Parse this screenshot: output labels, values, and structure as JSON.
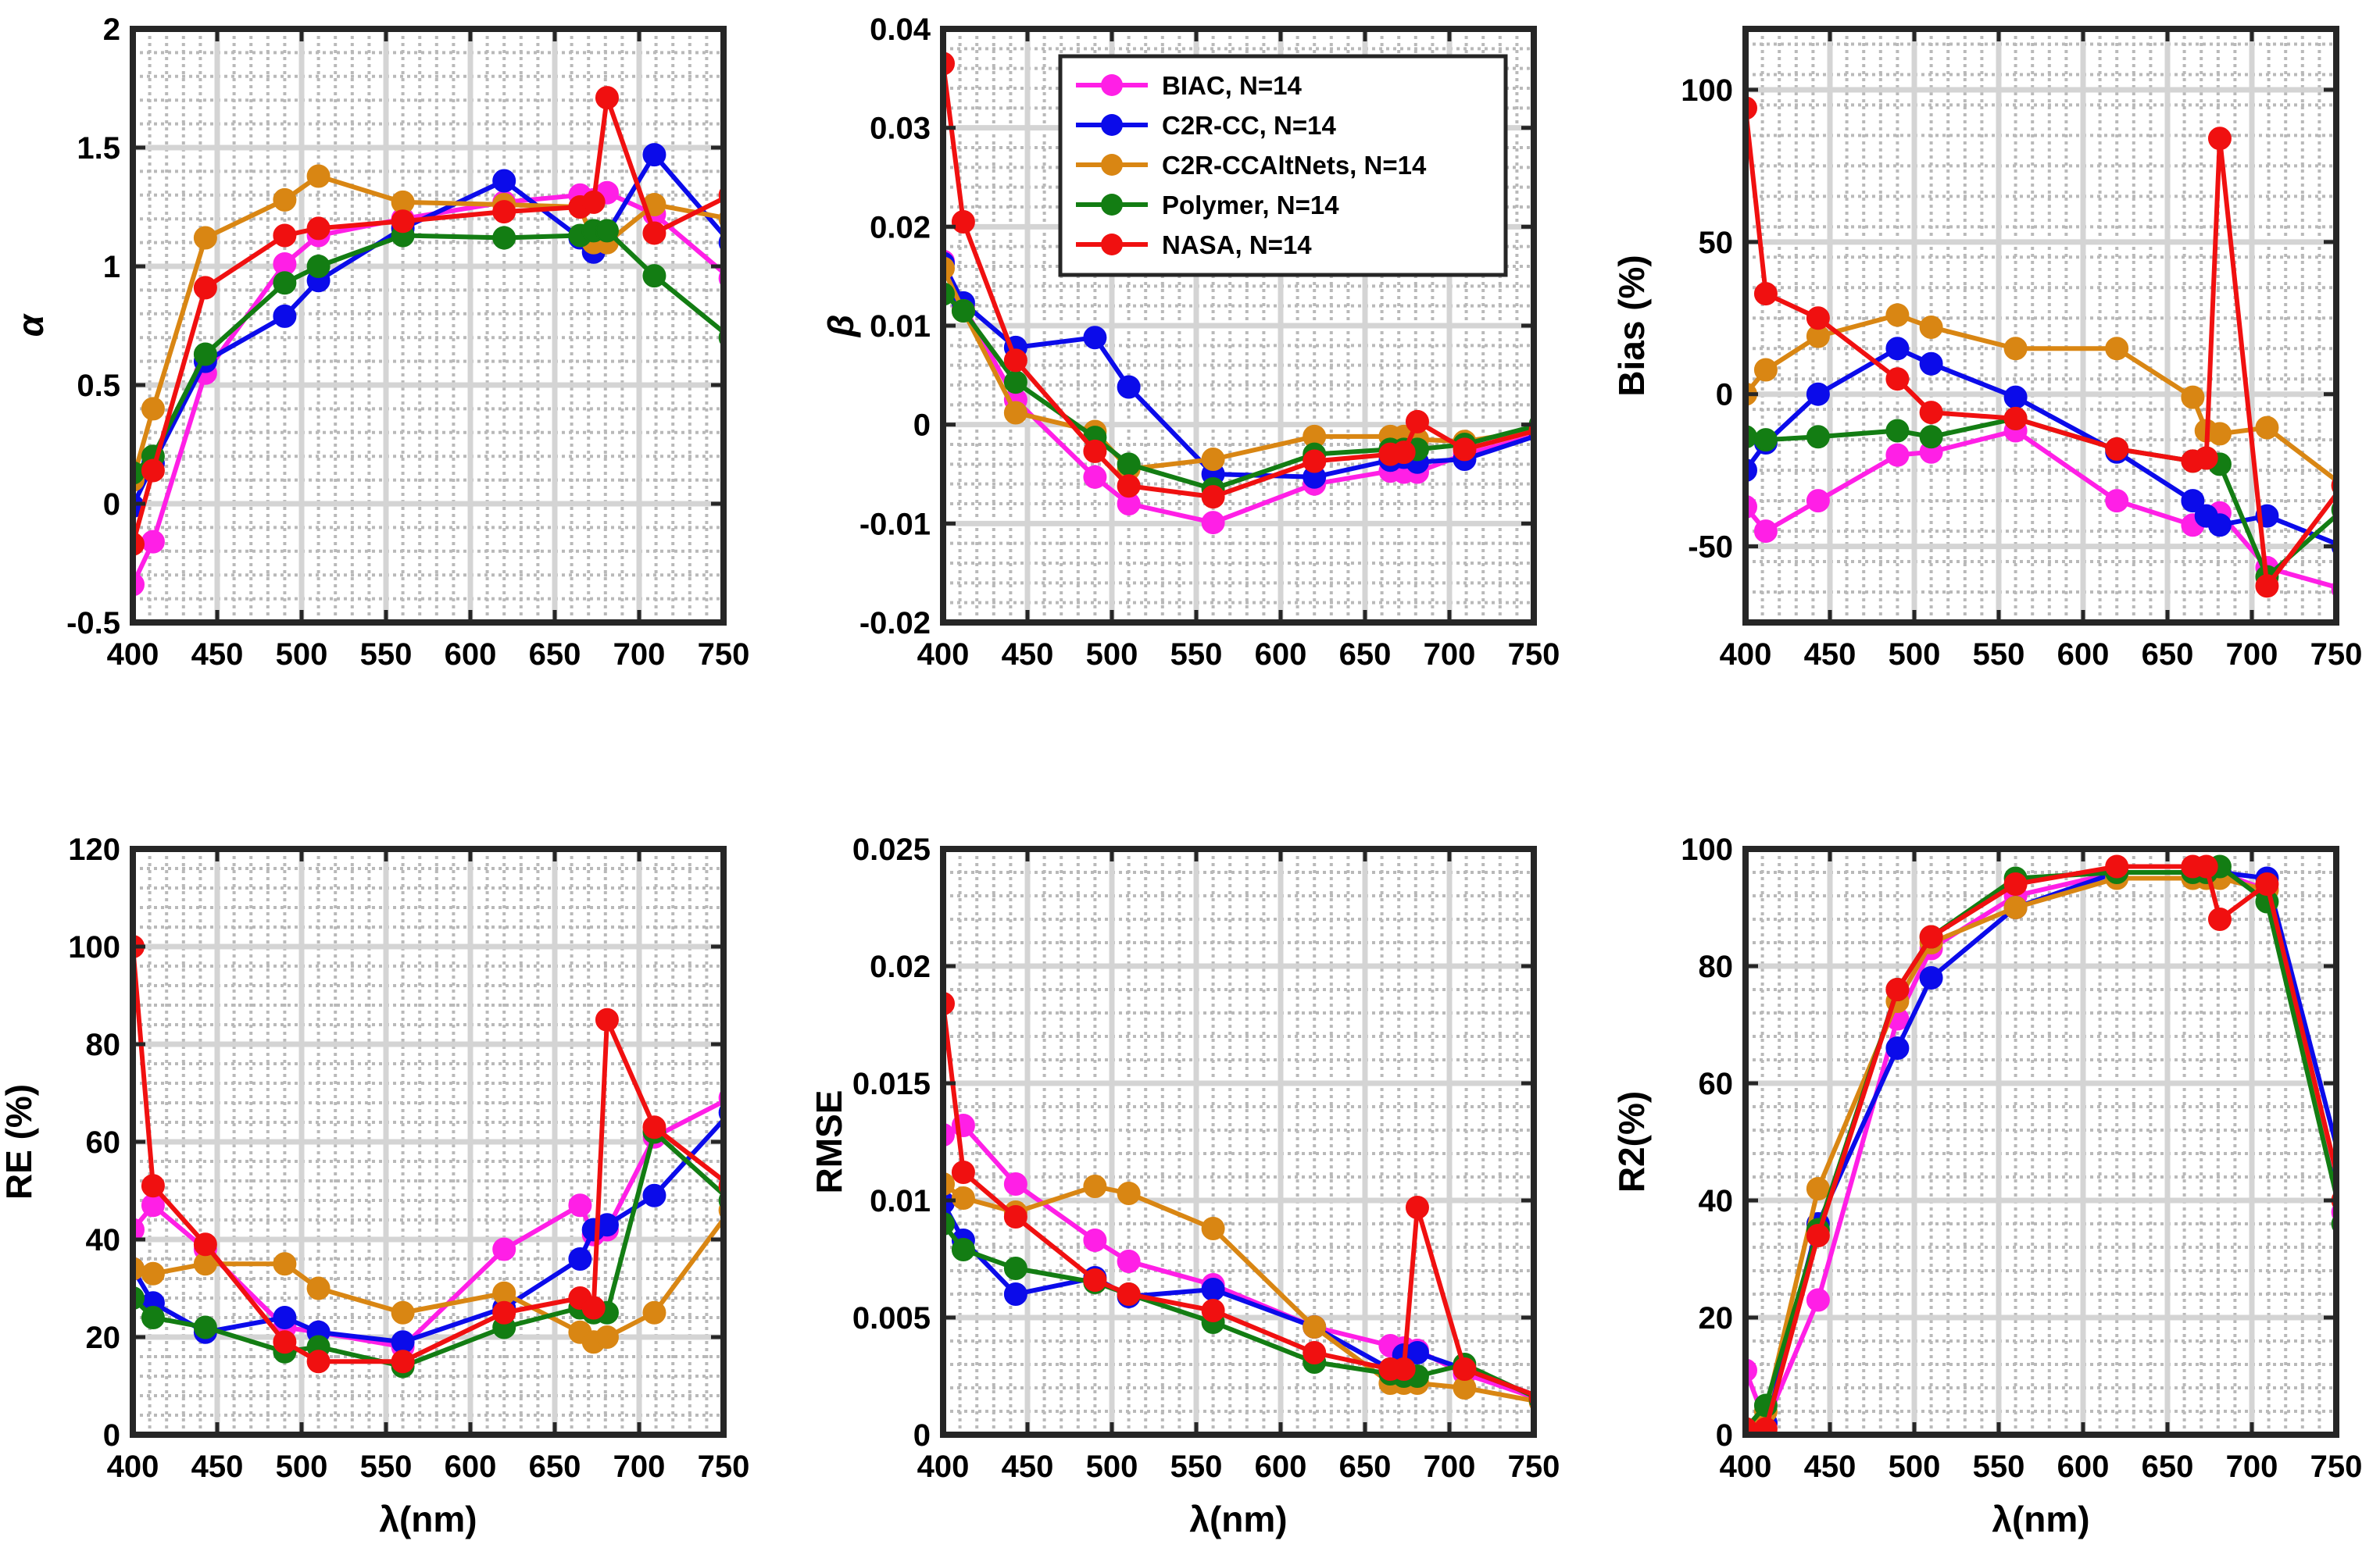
{
  "colors": {
    "BIAC": "#ff1fe6",
    "C2R-CC": "#0b0bea",
    "C2R-CCAltNets": "#d98613",
    "Polymer": "#137d13",
    "NASA": "#f01010"
  },
  "legend": [
    {
      "key": "BIAC",
      "label": "BIAC, N=14"
    },
    {
      "key": "C2R-CC",
      "label": "C2R-CC, N=14"
    },
    {
      "key": "C2R-CCAltNets",
      "label": "C2R-CCAltNets, N=14"
    },
    {
      "key": "Polymer",
      "label": "Polymer, N=14"
    },
    {
      "key": "NASA",
      "label": "NASA, N=14"
    }
  ],
  "chart_data": [
    {
      "id": "alpha",
      "type": "line",
      "ylabel": "α",
      "ylabel_style": "italic",
      "xlabel": "",
      "xlim": [
        400,
        750
      ],
      "ylim": [
        -0.5,
        2
      ],
      "xticks": [
        "400",
        "450",
        "500",
        "550",
        "600",
        "650",
        "700",
        "750"
      ],
      "yticks": [
        "-0.5",
        "0",
        "0.5",
        "1",
        "1.5",
        "2"
      ],
      "series": [
        {
          "name": "BIAC",
          "x": [
            400,
            412,
            443,
            490,
            510,
            560,
            620,
            665,
            673,
            681,
            709,
            754
          ],
          "y": [
            -0.34,
            -0.16,
            0.55,
            1.01,
            1.13,
            1.2,
            1.27,
            1.3,
            1.28,
            1.31,
            1.22,
            0.95
          ]
        },
        {
          "name": "C2R-CC",
          "x": [
            400,
            412,
            443,
            490,
            510,
            560,
            620,
            665,
            673,
            681,
            709,
            754
          ],
          "y": [
            -0.01,
            0.17,
            0.6,
            0.79,
            0.94,
            1.16,
            1.36,
            1.12,
            1.06,
            1.14,
            1.47,
            1.1
          ]
        },
        {
          "name": "C2R-CCAltNets",
          "x": [
            400,
            412,
            443,
            490,
            510,
            560,
            620,
            665,
            673,
            681,
            709,
            754
          ],
          "y": [
            0.1,
            0.4,
            1.12,
            1.28,
            1.38,
            1.27,
            1.26,
            1.25,
            1.1,
            1.1,
            1.26,
            1.2
          ]
        },
        {
          "name": "Polymer",
          "x": [
            400,
            412,
            443,
            490,
            510,
            560,
            620,
            665,
            673,
            681,
            709,
            754
          ],
          "y": [
            0.13,
            0.2,
            0.63,
            0.93,
            1.0,
            1.13,
            1.12,
            1.13,
            1.15,
            1.15,
            0.96,
            0.7
          ]
        },
        {
          "name": "NASA",
          "x": [
            400,
            412,
            443,
            490,
            510,
            560,
            620,
            665,
            673,
            681,
            709,
            754
          ],
          "y": [
            -0.17,
            0.14,
            0.91,
            1.13,
            1.16,
            1.19,
            1.23,
            1.25,
            1.27,
            1.71,
            1.14,
            1.3
          ]
        }
      ]
    },
    {
      "id": "beta",
      "type": "line",
      "ylabel": "β",
      "ylabel_style": "italic",
      "xlabel": "",
      "xlim": [
        400,
        750
      ],
      "ylim": [
        -0.02,
        0.04
      ],
      "xticks": [
        "400",
        "450",
        "500",
        "550",
        "600",
        "650",
        "700",
        "750"
      ],
      "yticks": [
        "-0.02",
        "-0.01",
        "0",
        "0.01",
        "0.02",
        "0.03",
        "0.04"
      ],
      "series": [
        {
          "name": "BIAC",
          "x": [
            400,
            412,
            443,
            490,
            510,
            560,
            620,
            665,
            673,
            681,
            709,
            754
          ],
          "y": [
            0.0165,
            0.012,
            0.0025,
            -0.0053,
            -0.008,
            -0.0099,
            -0.006,
            -0.0047,
            -0.0048,
            -0.0048,
            -0.003,
            -0.001
          ]
        },
        {
          "name": "C2R-CC",
          "x": [
            400,
            412,
            443,
            490,
            510,
            560,
            620,
            665,
            673,
            681,
            709,
            754
          ],
          "y": [
            0.0163,
            0.0123,
            0.0078,
            0.0088,
            0.0038,
            -0.005,
            -0.0053,
            -0.0036,
            -0.0033,
            -0.0038,
            -0.0035,
            -0.001
          ]
        },
        {
          "name": "C2R-CCAltNets",
          "x": [
            400,
            412,
            443,
            490,
            510,
            560,
            620,
            665,
            673,
            681,
            709,
            754
          ],
          "y": [
            0.0158,
            0.0115,
            0.0012,
            -0.0007,
            -0.0045,
            -0.0035,
            -0.0012,
            -0.0012,
            -0.0012,
            -0.0015,
            -0.0017,
            -0.0005
          ]
        },
        {
          "name": "Polymer",
          "x": [
            400,
            412,
            443,
            490,
            510,
            560,
            620,
            665,
            673,
            681,
            709,
            754
          ],
          "y": [
            0.0132,
            0.0115,
            0.0043,
            -0.0013,
            -0.004,
            -0.0065,
            -0.003,
            -0.0025,
            -0.0025,
            -0.0025,
            -0.002,
            0.0
          ]
        },
        {
          "name": "NASA",
          "x": [
            400,
            412,
            443,
            490,
            510,
            560,
            620,
            665,
            673,
            681,
            709,
            754
          ],
          "y": [
            0.0365,
            0.0205,
            0.0065,
            -0.0027,
            -0.0062,
            -0.0073,
            -0.0037,
            -0.003,
            -0.0028,
            0.0003,
            -0.0025,
            -0.0005
          ]
        }
      ]
    },
    {
      "id": "bias",
      "type": "line",
      "ylabel": "Bias (%)",
      "ylabel_style": "bold",
      "xlabel": "",
      "xlim": [
        400,
        750
      ],
      "ylim": [
        -75,
        120
      ],
      "yticks_values": [
        -50,
        0,
        50,
        100
      ],
      "xticks": [
        "400",
        "450",
        "500",
        "550",
        "600",
        "650",
        "700",
        "750"
      ],
      "yticks": [
        "-50",
        "0",
        "50",
        "100"
      ],
      "series": [
        {
          "name": "BIAC",
          "x": [
            400,
            412,
            443,
            490,
            510,
            560,
            620,
            665,
            673,
            681,
            709,
            754
          ],
          "y": [
            -37,
            -45,
            -35,
            -20,
            -19,
            -12,
            -35,
            -43,
            -40,
            -39,
            -57,
            -64
          ]
        },
        {
          "name": "C2R-CC",
          "x": [
            400,
            412,
            443,
            490,
            510,
            560,
            620,
            665,
            673,
            681,
            709,
            754
          ],
          "y": [
            -25,
            -16,
            0,
            15,
            10,
            -1,
            -19,
            -35,
            -40,
            -43,
            -40,
            -50
          ]
        },
        {
          "name": "C2R-CCAltNets",
          "x": [
            400,
            412,
            443,
            490,
            510,
            560,
            620,
            665,
            673,
            681,
            709,
            754
          ],
          "y": [
            0,
            8,
            19,
            26,
            22,
            15,
            15,
            -1,
            -12,
            -13,
            -11,
            -30
          ]
        },
        {
          "name": "Polymer",
          "x": [
            400,
            412,
            443,
            490,
            510,
            560,
            620,
            665,
            673,
            681,
            709,
            754
          ],
          "y": [
            -14,
            -15,
            -14,
            -12,
            -14,
            -8,
            -18,
            -22,
            -21,
            -23,
            -60,
            -38
          ]
        },
        {
          "name": "NASA",
          "x": [
            400,
            412,
            443,
            490,
            510,
            560,
            620,
            665,
            673,
            681,
            709,
            754
          ],
          "y": [
            94,
            33,
            25,
            5,
            -6,
            -8,
            -18,
            -22,
            -21,
            84,
            -63,
            -30
          ]
        }
      ]
    },
    {
      "id": "re",
      "type": "line",
      "ylabel": "RE (%)",
      "ylabel_style": "bold",
      "xlabel": "λ(nm)",
      "xlim": [
        400,
        750
      ],
      "ylim": [
        0,
        120
      ],
      "xticks": [
        "400",
        "450",
        "500",
        "550",
        "600",
        "650",
        "700",
        "750"
      ],
      "yticks": [
        "0",
        "20",
        "40",
        "60",
        "80",
        "100",
        "120"
      ],
      "series": [
        {
          "name": "BIAC",
          "x": [
            400,
            412,
            443,
            490,
            510,
            560,
            620,
            665,
            673,
            681,
            709,
            754
          ],
          "y": [
            42,
            47,
            38,
            22,
            21,
            18,
            38,
            47,
            41,
            42,
            61,
            69
          ]
        },
        {
          "name": "C2R-CC",
          "x": [
            400,
            412,
            443,
            490,
            510,
            560,
            620,
            665,
            673,
            681,
            709,
            754
          ],
          "y": [
            34,
            27,
            21,
            24,
            21,
            19,
            26,
            36,
            42,
            43,
            49,
            66
          ]
        },
        {
          "name": "C2R-CCAltNets",
          "x": [
            400,
            412,
            443,
            490,
            510,
            560,
            620,
            665,
            673,
            681,
            709,
            754
          ],
          "y": [
            34,
            33,
            35,
            35,
            30,
            25,
            29,
            21,
            19,
            20,
            25,
            46
          ]
        },
        {
          "name": "Polymer",
          "x": [
            400,
            412,
            443,
            490,
            510,
            560,
            620,
            665,
            673,
            681,
            709,
            754
          ],
          "y": [
            28,
            24,
            22,
            17,
            18,
            14,
            22,
            26,
            25,
            25,
            62,
            48
          ]
        },
        {
          "name": "NASA",
          "x": [
            400,
            412,
            443,
            490,
            510,
            560,
            620,
            665,
            673,
            681,
            709,
            754
          ],
          "y": [
            100,
            51,
            39,
            19,
            15,
            15,
            25,
            28,
            26,
            85,
            63,
            51
          ]
        }
      ]
    },
    {
      "id": "rmse",
      "type": "line",
      "ylabel": "RMSE",
      "ylabel_style": "bold",
      "xlabel": "λ(nm)",
      "xlim": [
        400,
        750
      ],
      "ylim": [
        0,
        0.025
      ],
      "xticks": [
        "400",
        "450",
        "500",
        "550",
        "600",
        "650",
        "700",
        "750"
      ],
      "yticks": [
        "0",
        "0.005",
        "0.01",
        "0.015",
        "0.02",
        "0.025"
      ],
      "series": [
        {
          "name": "BIAC",
          "x": [
            400,
            412,
            443,
            490,
            510,
            560,
            620,
            665,
            673,
            681,
            709,
            754
          ],
          "y": [
            0.0128,
            0.0132,
            0.0107,
            0.0083,
            0.0074,
            0.0064,
            0.0046,
            0.0038,
            0.0037,
            0.0036,
            0.0026,
            0.0015
          ]
        },
        {
          "name": "C2R-CC",
          "x": [
            400,
            412,
            443,
            490,
            510,
            560,
            620,
            665,
            673,
            681,
            709,
            754
          ],
          "y": [
            0.0099,
            0.0083,
            0.006,
            0.0067,
            0.0059,
            0.0062,
            0.0046,
            0.0028,
            0.0034,
            0.0035,
            0.0028,
            0.0016
          ]
        },
        {
          "name": "C2R-CCAltNets",
          "x": [
            400,
            412,
            443,
            490,
            510,
            560,
            620,
            665,
            673,
            681,
            709,
            754
          ],
          "y": [
            0.0107,
            0.0101,
            0.0095,
            0.0106,
            0.0103,
            0.0088,
            0.0046,
            0.0022,
            0.0022,
            0.0022,
            0.002,
            0.0014
          ]
        },
        {
          "name": "Polymer",
          "x": [
            400,
            412,
            443,
            490,
            510,
            560,
            620,
            665,
            673,
            681,
            709,
            754
          ],
          "y": [
            0.009,
            0.0079,
            0.0071,
            0.0065,
            0.006,
            0.0048,
            0.0031,
            0.0026,
            0.0025,
            0.0025,
            0.003,
            0.0015
          ]
        },
        {
          "name": "NASA",
          "x": [
            400,
            412,
            443,
            490,
            510,
            560,
            620,
            665,
            673,
            681,
            709,
            754
          ],
          "y": [
            0.0184,
            0.0112,
            0.0093,
            0.0066,
            0.006,
            0.0053,
            0.0035,
            0.0028,
            0.0028,
            0.0097,
            0.0028,
            0.0016
          ]
        }
      ]
    },
    {
      "id": "r2",
      "type": "line",
      "ylabel": "R2(%)",
      "ylabel_style": "bold",
      "xlabel": "λ(nm)",
      "xlim": [
        400,
        750
      ],
      "ylim": [
        0,
        100
      ],
      "xticks": [
        "400",
        "450",
        "500",
        "550",
        "600",
        "650",
        "700",
        "750"
      ],
      "yticks": [
        "0",
        "20",
        "40",
        "60",
        "80",
        "100"
      ],
      "series": [
        {
          "name": "BIAC",
          "x": [
            400,
            412,
            443,
            490,
            510,
            560,
            620,
            665,
            673,
            681,
            709,
            754
          ],
          "y": [
            11,
            2,
            23,
            71,
            83,
            92,
            96,
            96,
            96,
            96,
            93,
            38
          ]
        },
        {
          "name": "C2R-CC",
          "x": [
            400,
            412,
            443,
            490,
            510,
            560,
            620,
            665,
            673,
            681,
            709,
            754
          ],
          "y": [
            1,
            2,
            36,
            66,
            78,
            90,
            96,
            96,
            96,
            96,
            95,
            45
          ]
        },
        {
          "name": "C2R-CCAltNets",
          "x": [
            400,
            412,
            443,
            490,
            510,
            560,
            620,
            665,
            673,
            681,
            709,
            754
          ],
          "y": [
            1,
            4,
            42,
            74,
            84,
            90,
            95,
            95,
            95,
            95,
            93,
            40
          ]
        },
        {
          "name": "Polymer",
          "x": [
            400,
            412,
            443,
            490,
            510,
            560,
            620,
            665,
            673,
            681,
            709,
            754
          ],
          "y": [
            1,
            5,
            35,
            76,
            85,
            95,
            96,
            96,
            96,
            97,
            91,
            36
          ]
        },
        {
          "name": "NASA",
          "x": [
            400,
            412,
            443,
            490,
            510,
            560,
            620,
            665,
            673,
            681,
            709,
            754
          ],
          "y": [
            1,
            1,
            34,
            76,
            85,
            94,
            97,
            97,
            97,
            88,
            94,
            40
          ]
        }
      ]
    }
  ]
}
